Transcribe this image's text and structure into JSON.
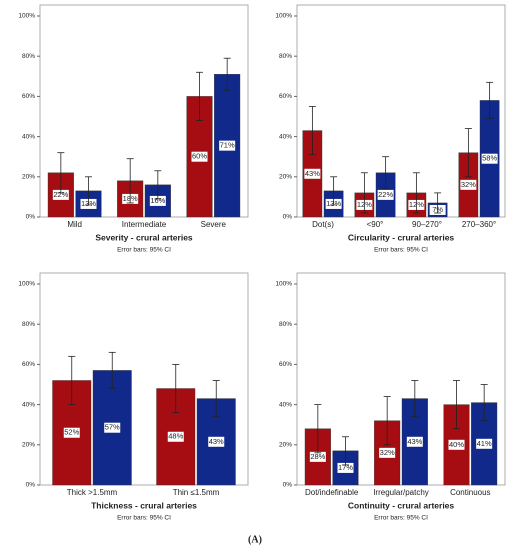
{
  "caption": "(A)",
  "chart_data": [
    {
      "type": "bar",
      "title": "Severity - crural arteries",
      "note": "Error bars: 95% CI",
      "categories": [
        "Mild",
        "Intermediate",
        "Severe"
      ],
      "series": [
        {
          "color": "#a50d12",
          "values": [
            22,
            18,
            60
          ],
          "errors": [
            10,
            11,
            12
          ],
          "value_labels": [
            "22%",
            "18%",
            "60%"
          ]
        },
        {
          "color": "#11298a",
          "values": [
            13,
            16,
            71
          ],
          "errors": [
            7,
            7,
            8
          ],
          "value_labels": [
            "13%",
            "16%",
            "71%"
          ]
        }
      ],
      "ylim": [
        0,
        100
      ],
      "yticks": [
        {
          "value": 0,
          "label": "0%"
        },
        {
          "value": 20,
          "label": "20%"
        },
        {
          "value": 40,
          "label": "40%"
        },
        {
          "value": 60,
          "label": "60%"
        },
        {
          "value": 80,
          "label": "80%"
        },
        {
          "value": 100,
          "label": "100%"
        }
      ]
    },
    {
      "type": "bar",
      "title": "Circularity - crural arteries",
      "note": "Error bars: 95% CI",
      "categories": [
        "Dot(s)",
        "<90°",
        "90–270°",
        "270–360°"
      ],
      "series": [
        {
          "color": "#a50d12",
          "values": [
            43,
            12,
            12,
            32
          ],
          "errors": [
            12,
            10,
            10,
            12
          ],
          "value_labels": [
            "43%",
            "12%",
            "12%",
            "32%"
          ]
        },
        {
          "color": "#11298a",
          "values": [
            13,
            22,
            7,
            58
          ],
          "errors": [
            7,
            8,
            5,
            9
          ],
          "value_labels": [
            "13%",
            "22%",
            "7%",
            "58%"
          ]
        }
      ],
      "ylim": [
        0,
        100
      ],
      "yticks": [
        {
          "value": 0,
          "label": "0%"
        },
        {
          "value": 20,
          "label": "20%"
        },
        {
          "value": 40,
          "label": "40%"
        },
        {
          "value": 60,
          "label": "60%"
        },
        {
          "value": 80,
          "label": "80%"
        },
        {
          "value": 100,
          "label": "100%"
        }
      ]
    },
    {
      "type": "bar",
      "title": "Thickness - crural arteries",
      "note": "Error bars: 95% CI",
      "categories": [
        "Thick >1.5mm",
        "Thin ≤1.5mm"
      ],
      "series": [
        {
          "color": "#a50d12",
          "values": [
            52,
            48
          ],
          "errors": [
            12,
            12
          ],
          "value_labels": [
            "52%",
            "48%"
          ]
        },
        {
          "color": "#11298a",
          "values": [
            57,
            43
          ],
          "errors": [
            9,
            9
          ],
          "value_labels": [
            "57%",
            "43%"
          ]
        }
      ],
      "ylim": [
        0,
        100
      ],
      "yticks": [
        {
          "value": 0,
          "label": "0%"
        },
        {
          "value": 20,
          "label": "20%"
        },
        {
          "value": 40,
          "label": "40%"
        },
        {
          "value": 60,
          "label": "60%"
        },
        {
          "value": 80,
          "label": "80%"
        },
        {
          "value": 100,
          "label": "100%"
        }
      ]
    },
    {
      "type": "bar",
      "title": "Continuity - crural arteries",
      "note": "Error bars: 95% CI",
      "categories": [
        "Dot/indefinable",
        "Irregular/patchy",
        "Continuous"
      ],
      "series": [
        {
          "color": "#a50d12",
          "values": [
            28,
            32,
            40
          ],
          "errors": [
            12,
            12,
            12
          ],
          "value_labels": [
            "28%",
            "32%",
            "40%"
          ]
        },
        {
          "color": "#11298a",
          "values": [
            17,
            43,
            41
          ],
          "errors": [
            7,
            9,
            9
          ],
          "value_labels": [
            "17%",
            "43%",
            "41%"
          ]
        }
      ],
      "ylim": [
        0,
        100
      ],
      "yticks": [
        {
          "value": 0,
          "label": "0%"
        },
        {
          "value": 20,
          "label": "20%"
        },
        {
          "value": 40,
          "label": "40%"
        },
        {
          "value": 60,
          "label": "60%"
        },
        {
          "value": 80,
          "label": "80%"
        },
        {
          "value": 100,
          "label": "100%"
        }
      ]
    }
  ]
}
